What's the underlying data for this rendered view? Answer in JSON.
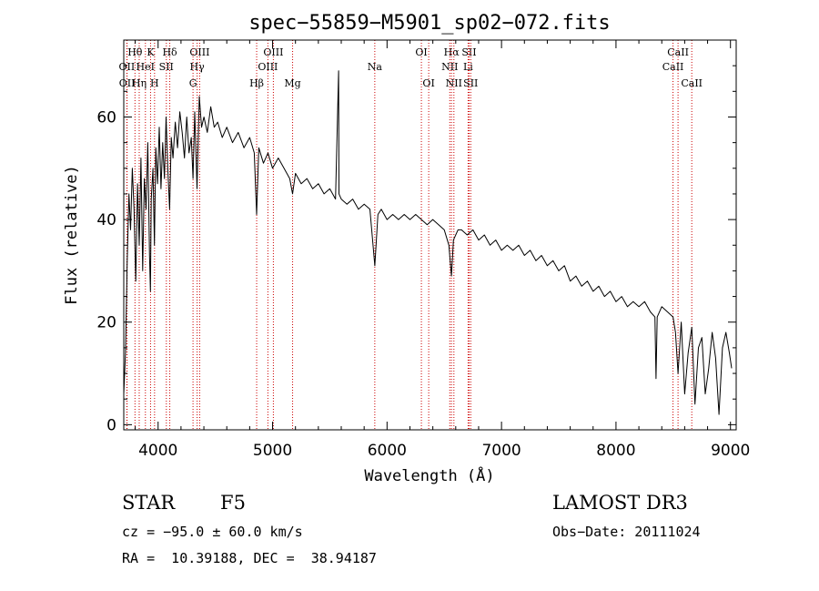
{
  "chart_data": {
    "type": "line",
    "title": "spec−55859−M5901_sp02−072.fits",
    "xlabel": "Wavelength (Å)",
    "ylabel": "Flux (relative)",
    "xlim": [
      3700,
      9050
    ],
    "ylim": [
      -1,
      75
    ],
    "xticks": [
      4000,
      5000,
      6000,
      7000,
      8000,
      9000
    ],
    "yticks": [
      0,
      20,
      40,
      60
    ],
    "grid": false,
    "series": [
      {
        "name": "flux",
        "x": [
          3700,
          3715,
          3730,
          3745,
          3760,
          3775,
          3790,
          3805,
          3820,
          3835,
          3850,
          3865,
          3880,
          3895,
          3910,
          3925,
          3933,
          3940,
          3955,
          3968,
          3980,
          3995,
          4010,
          4025,
          4040,
          4055,
          4070,
          4085,
          4101,
          4115,
          4130,
          4150,
          4170,
          4190,
          4210,
          4230,
          4250,
          4270,
          4290,
          4305,
          4320,
          4340,
          4360,
          4380,
          4400,
          4430,
          4460,
          4490,
          4520,
          4560,
          4600,
          4650,
          4700,
          4750,
          4800,
          4840,
          4861,
          4880,
          4920,
          4960,
          5000,
          5050,
          5100,
          5150,
          5175,
          5200,
          5250,
          5300,
          5350,
          5400,
          5450,
          5500,
          5550,
          5577,
          5580,
          5600,
          5650,
          5700,
          5750,
          5800,
          5850,
          5893,
          5920,
          5950,
          6000,
          6050,
          6100,
          6150,
          6200,
          6250,
          6300,
          6350,
          6400,
          6450,
          6500,
          6540,
          6563,
          6580,
          6620,
          6650,
          6700,
          6750,
          6800,
          6850,
          6900,
          6950,
          7000,
          7050,
          7100,
          7150,
          7200,
          7250,
          7300,
          7350,
          7400,
          7450,
          7500,
          7550,
          7600,
          7650,
          7700,
          7750,
          7800,
          7850,
          7900,
          7950,
          8000,
          8050,
          8100,
          8150,
          8200,
          8250,
          8300,
          8340,
          8350,
          8360,
          8400,
          8450,
          8498,
          8520,
          8542,
          8570,
          8600,
          8630,
          8662,
          8690,
          8720,
          8750,
          8780,
          8810,
          8840,
          8870,
          8900,
          8930,
          8960,
          8990,
          9010
        ],
        "values": [
          6,
          14,
          32,
          45,
          38,
          50,
          42,
          28,
          47,
          35,
          52,
          30,
          48,
          42,
          55,
          33,
          26,
          44,
          50,
          35,
          54,
          47,
          58,
          46,
          55,
          48,
          60,
          50,
          42,
          56,
          52,
          59,
          54,
          61,
          57,
          52,
          60,
          53,
          56,
          48,
          61,
          46,
          64,
          58,
          60,
          57,
          62,
          58,
          59,
          56,
          58,
          55,
          57,
          54,
          56,
          53,
          41,
          54,
          51,
          53,
          50,
          52,
          50,
          48,
          45,
          49,
          47,
          48,
          46,
          47,
          45,
          46,
          44,
          69,
          45,
          44,
          43,
          44,
          42,
          43,
          42,
          31,
          41,
          42,
          40,
          41,
          40,
          41,
          40,
          41,
          40,
          39,
          40,
          39,
          38,
          35,
          29,
          36,
          38,
          38,
          37,
          38,
          36,
          37,
          35,
          36,
          34,
          35,
          34,
          35,
          33,
          34,
          32,
          33,
          31,
          32,
          30,
          31,
          28,
          29,
          27,
          28,
          26,
          27,
          25,
          26,
          24,
          25,
          23,
          24,
          23,
          24,
          22,
          21,
          9,
          21,
          23,
          22,
          21,
          18,
          10,
          20,
          6,
          14,
          19,
          4,
          15,
          17,
          6,
          11,
          18,
          13,
          2,
          15,
          18,
          14,
          11
        ]
      }
    ],
    "spectral_lines": [
      {
        "label": "Hθ",
        "wavelength": 3798,
        "row": 1
      },
      {
        "label": "OII",
        "wavelength": 3727,
        "row": 2
      },
      {
        "label": "OII",
        "wavelength": 3729,
        "row": 3
      },
      {
        "label": "HeI",
        "wavelength": 3889,
        "row": 2
      },
      {
        "label": "Hη",
        "wavelength": 3835,
        "row": 3
      },
      {
        "label": "K",
        "wavelength": 3934,
        "row": 1
      },
      {
        "label": "H",
        "wavelength": 3969,
        "row": 3
      },
      {
        "label": "SII",
        "wavelength": 4072,
        "row": 2
      },
      {
        "label": "Hδ",
        "wavelength": 4102,
        "row": 1
      },
      {
        "label": "OIII",
        "wavelength": 4363,
        "row": 1
      },
      {
        "label": "Hγ",
        "wavelength": 4341,
        "row": 2
      },
      {
        "label": "G",
        "wavelength": 4305,
        "row": 3
      },
      {
        "label": "Hβ",
        "wavelength": 4861,
        "row": 3
      },
      {
        "label": "OIII",
        "wavelength": 5007,
        "row": 1
      },
      {
        "label": "OIII",
        "wavelength": 4959,
        "row": 2
      },
      {
        "label": "Mg",
        "wavelength": 5175,
        "row": 3
      },
      {
        "label": "Na",
        "wavelength": 5893,
        "row": 2
      },
      {
        "label": "OI",
        "wavelength": 6300,
        "row": 1
      },
      {
        "label": "OI",
        "wavelength": 6364,
        "row": 3
      },
      {
        "label": "Hα",
        "wavelength": 6563,
        "row": 1
      },
      {
        "label": "SII",
        "wavelength": 6717,
        "row": 1
      },
      {
        "label": "NII",
        "wavelength": 6548,
        "row": 2
      },
      {
        "label": "Li",
        "wavelength": 6708,
        "row": 2
      },
      {
        "label": "NII",
        "wavelength": 6584,
        "row": 3
      },
      {
        "label": "SII",
        "wavelength": 6731,
        "row": 3
      },
      {
        "label": "CaII",
        "wavelength": 8542,
        "row": 1
      },
      {
        "label": "CaII",
        "wavelength": 8498,
        "row": 2
      },
      {
        "label": "CaII",
        "wavelength": 8662,
        "row": 3
      }
    ]
  },
  "info": {
    "object_class": "STAR",
    "subclass": "F5",
    "survey": "LAMOST DR3",
    "cz": "cz = −95.0 ± 60.0 km/s",
    "obs_date": "Obs−Date: 20111024",
    "coords": "RA =  10.39188, DEC =  38.94187"
  },
  "colors": {
    "line_marker": "#cc0000",
    "spectrum": "#000000",
    "axes": "#000000",
    "background": "#ffffff"
  }
}
